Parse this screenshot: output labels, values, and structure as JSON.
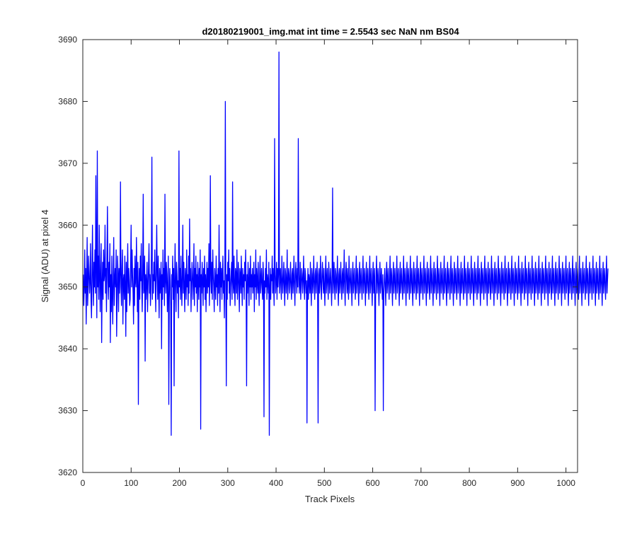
{
  "chart_data": {
    "type": "line",
    "title": "d20180219001_img.mat int time = 2.5543 sec  NaN nm BS04",
    "xlabel": "Track Pixels",
    "ylabel": "Signal (ADU) at pixel 4",
    "xlim": [
      0,
      1024
    ],
    "ylim": [
      3620,
      3690
    ],
    "xticks": [
      0,
      100,
      200,
      300,
      400,
      500,
      600,
      700,
      800,
      900,
      1000
    ],
    "yticks": [
      3620,
      3630,
      3640,
      3650,
      3660,
      3670,
      3680,
      3690
    ],
    "grid": false,
    "line_color": "#0000ff",
    "series": [
      {
        "x_start": 1,
        "x_step": 1,
        "values": [
          3652,
          3647,
          3650,
          3656,
          3649,
          3653,
          3644,
          3651,
          3658,
          3647,
          3650,
          3655,
          3652,
          3649,
          3651,
          3657,
          3648,
          3645,
          3652,
          3660,
          3651,
          3647,
          3654,
          3650,
          3656,
          3649,
          3668,
          3653,
          3645,
          3672,
          3650,
          3655,
          3648,
          3660,
          3652,
          3646,
          3653,
          3657,
          3641,
          3650,
          3654,
          3648,
          3656,
          3651,
          3652,
          3660,
          3649,
          3653,
          3646,
          3655,
          3663,
          3651,
          3648,
          3654,
          3650,
          3657,
          3641,
          3652,
          3646,
          3655,
          3649,
          3644,
          3652,
          3658,
          3647,
          3651,
          3653,
          3650,
          3656,
          3642,
          3648,
          3655,
          3652,
          3646,
          3653,
          3649,
          3652,
          3667,
          3650,
          3647,
          3653,
          3656,
          3644,
          3651,
          3652,
          3648,
          3655,
          3650,
          3642,
          3654,
          3646,
          3652,
          3657,
          3649,
          3653,
          3651,
          3647,
          3648,
          3654,
          3660,
          3650,
          3656,
          3652,
          3649,
          3644,
          3653,
          3647,
          3655,
          3651,
          3650,
          3658,
          3652,
          3646,
          3654,
          3631,
          3650,
          3653,
          3648,
          3655,
          3651,
          3657,
          3650,
          3646,
          3653,
          3665,
          3649,
          3650,
          3655,
          3638,
          3652,
          3648,
          3651,
          3654,
          3646,
          3650,
          3653,
          3657,
          3649,
          3652,
          3647,
          3650,
          3655,
          3671,
          3648,
          3652,
          3649,
          3654,
          3651,
          3656,
          3650,
          3646,
          3653,
          3660,
          3652,
          3648,
          3655,
          3650,
          3645,
          3653,
          3649,
          3651,
          3654,
          3640,
          3652,
          3648,
          3656,
          3650,
          3653,
          3647,
          3665,
          3651,
          3649,
          3654,
          3652,
          3646,
          3650,
          3655,
          3631,
          3648,
          3653,
          3651,
          3647,
          3626,
          3652,
          3650,
          3655,
          3648,
          3653,
          3634,
          3651,
          3657,
          3650,
          3646,
          3654,
          3652,
          3649,
          3651,
          3645,
          3672,
          3650,
          3653,
          3648,
          3655,
          3651,
          3647,
          3652,
          3660,
          3649,
          3654,
          3650,
          3646,
          3653,
          3651,
          3648,
          3656,
          3650,
          3652,
          3647,
          3655,
          3649,
          3661,
          3651,
          3653,
          3646,
          3650,
          3654,
          3652,
          3648,
          3651,
          3657,
          3647,
          3653,
          3650,
          3655,
          3649,
          3652,
          3646,
          3654,
          3651,
          3648,
          3653,
          3650,
          3656,
          3627,
          3652,
          3649,
          3654,
          3651,
          3647,
          3653,
          3650,
          3655,
          3648,
          3652,
          3646,
          3651,
          3654,
          3649,
          3653,
          3650,
          3657,
          3647,
          3652,
          3668,
          3651,
          3649,
          3654,
          3648,
          3656,
          3652,
          3650,
          3646,
          3653,
          3651,
          3648,
          3655,
          3650,
          3652,
          3647,
          3653,
          3649,
          3660,
          3651,
          3646,
          3654,
          3650,
          3653,
          3648,
          3652,
          3655,
          3649,
          3651,
          3645,
          3653,
          3680,
          3650,
          3634,
          3652,
          3648,
          3654,
          3651,
          3656,
          3649,
          3653,
          3647,
          3650,
          3652,
          3654,
          3648,
          3667,
          3651,
          3649,
          3655,
          3650,
          3647,
          3653,
          3652,
          3649,
          3656,
          3648,
          3651,
          3654,
          3650,
          3646,
          3653,
          3652,
          3649,
          3655,
          3651,
          3647,
          3653,
          3650,
          3652,
          3648,
          3654,
          3651,
          3656,
          3650,
          3634,
          3652,
          3649,
          3654,
          3651,
          3647,
          3653,
          3650,
          3655,
          3648,
          3652,
          3650,
          3653,
          3649,
          3651,
          3654,
          3646,
          3652,
          3650,
          3656,
          3648,
          3653,
          3651,
          3649,
          3654,
          3650,
          3647,
          3652,
          3655,
          3649,
          3651,
          3653,
          3650,
          3648,
          3654,
          3652,
          3629,
          3651,
          3649,
          3653,
          3650,
          3656,
          3648,
          3652,
          3651,
          3649,
          3654,
          3626,
          3650,
          3653,
          3648,
          3652,
          3651,
          3655,
          3649,
          3653,
          3650,
          3647,
          3674,
          3652,
          3649,
          3651,
          3654,
          3648,
          3653,
          3650,
          3652,
          3688,
          3649,
          3651,
          3653,
          3650,
          3648,
          3655,
          3652,
          3649,
          3651,
          3654,
          3650,
          3647,
          3653,
          3652,
          3649,
          3651,
          3656,
          3648,
          3650,
          3653,
          3652,
          3649,
          3651,
          3654,
          3650,
          3648,
          3652,
          3653,
          3649,
          3651,
          3655,
          3650,
          3647,
          3652,
          3654,
          3651,
          3649,
          3653,
          3650,
          3674,
          3652,
          3649,
          3651,
          3654,
          3648,
          3650,
          3653,
          3652,
          3649,
          3651,
          3655,
          3650,
          3648,
          3653,
          3652,
          3649,
          3651,
          3628,
          3650,
          3653,
          3648,
          3652,
          3651,
          3649,
          3654,
          3650,
          3647,
          3653,
          3652,
          3649,
          3651,
          3655,
          3650,
          3648,
          3652,
          3653,
          3649,
          3651,
          3654,
          3650,
          3628,
          3652,
          3653,
          3649,
          3651,
          3655,
          3650,
          3648,
          3652,
          3654,
          3651,
          3649,
          3653,
          3650,
          3647,
          3652,
          3655,
          3649,
          3651,
          3653,
          3650,
          3648,
          3654,
          3652,
          3649,
          3651,
          3653,
          3650,
          3647,
          3652,
          3666,
          3649,
          3651,
          3654,
          3650,
          3648,
          3653,
          3652,
          3649,
          3651,
          3655,
          3650,
          3647,
          3652,
          3653,
          3649,
          3651,
          3654,
          3650,
          3648,
          3652,
          3653,
          3649,
          3651,
          3656,
          3650,
          3647,
          3652,
          3654,
          3651,
          3649,
          3653,
          3650,
          3648,
          3655,
          3652,
          3649,
          3651,
          3653,
          3650,
          3647,
          3652,
          3654,
          3649,
          3651,
          3653,
          3650,
          3648,
          3652,
          3655,
          3649,
          3651,
          3653,
          3650,
          3647,
          3652,
          3654,
          3649,
          3651,
          3653,
          3650,
          3648,
          3652,
          3655,
          3649,
          3651,
          3653,
          3650,
          3647,
          3652,
          3654,
          3649,
          3651,
          3653,
          3650,
          3648,
          3652,
          3655,
          3649,
          3651,
          3653,
          3650,
          3647,
          3652,
          3654,
          3649,
          3651,
          3653,
          3630,
          3648,
          3652,
          3655,
          3649,
          3651,
          3653,
          3650,
          3647,
          3652,
          3654,
          3649,
          3651,
          3653,
          3650,
          3648,
          3652,
          3630,
          3649,
          3651,
          3653,
          3650,
          3647,
          3652,
          3654,
          3649,
          3651,
          3653,
          3650,
          3648,
          3652,
          3655,
          3649,
          3651,
          3653,
          3650,
          3647,
          3652,
          3654,
          3649,
          3651,
          3653,
          3650,
          3648,
          3652,
          3655,
          3649,
          3651,
          3653,
          3650,
          3647,
          3652,
          3654,
          3649,
          3651,
          3653,
          3650,
          3648,
          3652,
          3655,
          3649,
          3651,
          3653,
          3650,
          3647,
          3652,
          3654,
          3649,
          3651,
          3653,
          3650,
          3648,
          3652,
          3655,
          3649,
          3651,
          3653,
          3650,
          3647,
          3652,
          3654,
          3649,
          3651,
          3653,
          3650,
          3648,
          3652,
          3655,
          3649,
          3651,
          3653,
          3650,
          3647,
          3652,
          3654,
          3649,
          3651,
          3653,
          3650,
          3648,
          3652,
          3655,
          3649,
          3651,
          3653,
          3650,
          3647,
          3652,
          3654,
          3649,
          3651,
          3653,
          3650,
          3648,
          3652,
          3655,
          3649,
          3651,
          3653,
          3650,
          3647,
          3652,
          3654,
          3649,
          3651,
          3653,
          3650,
          3648,
          3652,
          3655,
          3649,
          3651,
          3653,
          3650,
          3647,
          3652,
          3654,
          3649,
          3651,
          3653,
          3650,
          3648,
          3652,
          3655,
          3649,
          3651,
          3653,
          3650,
          3647,
          3652,
          3654,
          3649,
          3651,
          3653,
          3650,
          3648,
          3652,
          3655,
          3649,
          3651,
          3653,
          3650,
          3647,
          3652,
          3654,
          3649,
          3651,
          3653,
          3650,
          3648,
          3652,
          3655,
          3649,
          3651,
          3653,
          3650,
          3647,
          3652,
          3654,
          3649,
          3651,
          3653,
          3650,
          3648,
          3652,
          3655,
          3649,
          3651,
          3653,
          3650,
          3647,
          3652,
          3654,
          3649,
          3651,
          3653,
          3650,
          3648,
          3652,
          3655,
          3649,
          3651,
          3653,
          3650,
          3647,
          3652,
          3654,
          3649,
          3651,
          3653,
          3650,
          3648,
          3652,
          3655,
          3649,
          3651,
          3653,
          3650,
          3647,
          3652,
          3654,
          3649,
          3651,
          3653,
          3650,
          3648,
          3652,
          3655,
          3649,
          3651,
          3653,
          3650,
          3647,
          3652,
          3654,
          3649,
          3651,
          3653,
          3650,
          3648,
          3652,
          3655,
          3649,
          3651,
          3653,
          3650,
          3647,
          3652,
          3654,
          3649,
          3651,
          3653,
          3650,
          3648,
          3652,
          3655,
          3649,
          3651,
          3653,
          3650,
          3647,
          3652,
          3654,
          3649,
          3651,
          3653,
          3650,
          3648,
          3652,
          3655,
          3649,
          3651,
          3653,
          3650,
          3647,
          3652,
          3654,
          3649,
          3651,
          3653,
          3650,
          3648,
          3652,
          3655,
          3649,
          3651,
          3653,
          3650,
          3647,
          3652,
          3654,
          3649,
          3651,
          3653,
          3650,
          3648,
          3652,
          3655,
          3649,
          3651,
          3653,
          3650,
          3647,
          3652,
          3654,
          3649,
          3651,
          3653,
          3650,
          3648,
          3652,
          3655,
          3649,
          3651,
          3653,
          3650,
          3647,
          3652,
          3654,
          3649,
          3651,
          3653,
          3650,
          3648,
          3652,
          3655,
          3649,
          3651,
          3653,
          3650,
          3647,
          3652,
          3654,
          3649,
          3651,
          3653,
          3650,
          3648,
          3652,
          3655,
          3649,
          3651,
          3653,
          3650,
          3647,
          3652,
          3654,
          3649,
          3651,
          3653,
          3650,
          3648,
          3652,
          3655,
          3649,
          3651,
          3653,
          3650,
          3647,
          3652,
          3654,
          3649,
          3651,
          3653,
          3650,
          3648,
          3652,
          3655,
          3649,
          3651,
          3653,
          3650,
          3647,
          3652,
          3654,
          3649,
          3651,
          3653,
          3650,
          3648,
          3652,
          3655,
          3649,
          3651,
          3653,
          3650,
          3647,
          3652,
          3654,
          3649,
          3651,
          3653,
          3650,
          3648,
          3652,
          3655,
          3649,
          3651,
          3653,
          3650,
          3647,
          3652,
          3654,
          3649,
          3651,
          3653,
          3650,
          3648,
          3652,
          3655,
          3649,
          3651,
          3653,
          3650,
          3647,
          3652,
          3654,
          3649,
          3651,
          3653,
          3650,
          3648,
          3652,
          3655,
          3649,
          3651,
          3653,
          3650,
          3647,
          3652,
          3654,
          3649,
          3651,
          3653,
          3650,
          3648,
          3652,
          3655,
          3649,
          3651,
          3653,
          3650,
          3647,
          3652,
          3654,
          3649,
          3651,
          3653,
          3650,
          3648,
          3652,
          3655,
          3649,
          3651,
          3653,
          3650,
          3647,
          3652,
          3654,
          3649,
          3651,
          3653,
          3650,
          3648,
          3652,
          3655,
          3649,
          3651,
          3653,
          3650,
          3647,
          3652,
          3654,
          3649,
          3651,
          3653,
          3650,
          3648,
          3652,
          3655,
          3649,
          3651,
          3653
        ]
      }
    ]
  }
}
